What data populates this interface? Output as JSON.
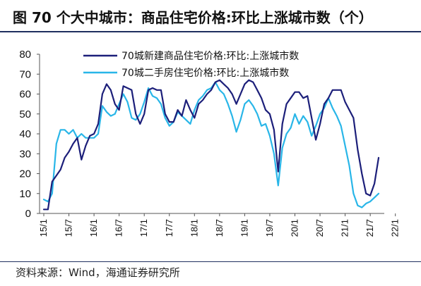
{
  "title": "图 70 个大中城市：商品住宅价格:环比上涨城市数（个）",
  "source": "资料来源：Wind，海通证券研究所",
  "chart_data": {
    "type": "line",
    "ylim": [
      0,
      80
    ],
    "yticks": [
      0,
      10,
      20,
      30,
      40,
      50,
      60,
      70,
      80
    ],
    "xtick_labels": [
      "15/1",
      "15/7",
      "16/1",
      "16/7",
      "17/1",
      "17/7",
      "18/1",
      "18/7",
      "19/1",
      "19/7",
      "20/1",
      "20/7",
      "21/1",
      "21/7",
      "22/1"
    ],
    "legend_position": "top-left",
    "grid": false,
    "series": [
      {
        "name": "70城新建商品住宅价格:环比:上涨城市数",
        "color": "#1c1f7a",
        "values": [
          2,
          2,
          16,
          19,
          22,
          28,
          31,
          35,
          38,
          27,
          34,
          39,
          40,
          45,
          60,
          65,
          62,
          55,
          52,
          64,
          63,
          62,
          50,
          45,
          50,
          62,
          63,
          62,
          62,
          50,
          46,
          46,
          52,
          49,
          57,
          52,
          48,
          55,
          57,
          60,
          62,
          66,
          67,
          65,
          63,
          60,
          55,
          60,
          65,
          67,
          66,
          62,
          58,
          52,
          50,
          42,
          21,
          45,
          55,
          58,
          61,
          61,
          58,
          59,
          48,
          37,
          45,
          55,
          58,
          62,
          62,
          62,
          56,
          52,
          48,
          32,
          20,
          10,
          9,
          15,
          28
        ]
      },
      {
        "name": "70城二手房住宅价格:环比:上涨城市数",
        "color": "#29b6e8",
        "values": [
          7,
          6,
          10,
          35,
          42,
          42,
          40,
          42,
          38,
          40,
          38,
          38,
          38,
          40,
          54,
          51,
          49,
          50,
          55,
          60,
          56,
          48,
          47,
          50,
          56,
          63,
          59,
          58,
          55,
          48,
          44,
          46,
          51,
          49,
          47,
          45,
          52,
          57,
          59,
          62,
          63,
          66,
          62,
          60,
          55,
          49,
          41,
          47,
          55,
          57,
          54,
          50,
          44,
          45,
          39,
          30,
          14,
          33,
          40,
          43,
          50,
          45,
          49,
          46,
          39,
          44,
          50,
          53,
          58,
          53,
          49,
          44,
          34,
          24,
          10,
          4,
          3,
          5,
          6,
          8,
          10
        ]
      }
    ]
  }
}
